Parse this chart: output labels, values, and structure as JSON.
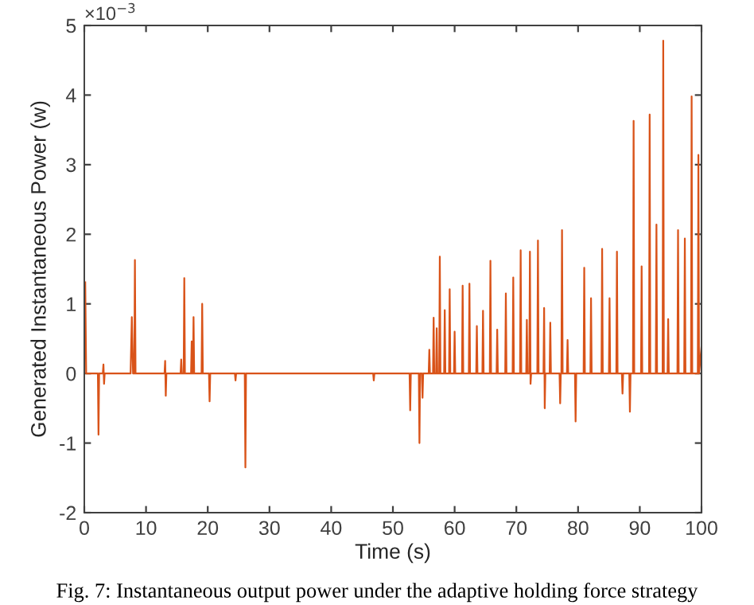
{
  "chart_data": {
    "type": "line",
    "xlabel": "Time (s)",
    "ylabel": "Generated Instantaneous Power (w)",
    "annotations": [
      "×10$^{−3}$",
      "Fig. 7: Instantaneous output power under the adaptive holding force strategy"
    ],
    "xlim": [
      0,
      100
    ],
    "xticks": [
      0,
      10,
      20,
      30,
      40,
      50,
      60,
      70,
      80,
      90,
      100
    ],
    "ylim": [
      -2,
      5
    ],
    "yticks": [
      -2,
      -1,
      0,
      1,
      2,
      3,
      4,
      5
    ],
    "grid": false,
    "legend": false,
    "series": [
      {
        "color": "#d95319",
        "x": [
          0.15,
          0.3,
          2.2,
          2.3,
          2.4,
          3.0,
          3.1,
          3.2,
          3.3,
          7.5,
          7.7,
          7.9,
          8.1,
          8.2,
          8.3,
          13.0,
          13.1,
          13.2,
          13.3,
          15.6,
          15.7,
          15.8,
          16.1,
          16.2,
          16.3,
          17.3,
          17.4,
          17.5,
          17.6,
          17.7,
          17.8,
          19.0,
          19.1,
          19.2,
          20.2,
          20.3,
          20.4,
          24.4,
          24.5,
          24.6,
          26.0,
          26.1,
          26.2,
          46.8,
          46.9,
          47.0,
          52.7,
          52.8,
          52.9,
          54.2,
          54.3,
          54.4,
          54.7,
          54.8,
          54.9,
          55.8,
          55.9,
          56.0,
          56.5,
          56.6,
          56.7,
          57.0,
          57.1,
          57.2,
          57.5,
          57.6,
          57.7,
          58.3,
          58.4,
          58.5,
          59.1,
          59.2,
          59.3,
          59.9,
          60,
          60.1,
          61.2,
          61.3,
          61.4,
          62.3,
          62.4,
          62.5,
          63.5,
          63.6,
          63.7,
          64.5,
          64.6,
          64.7,
          65.7,
          65.8,
          65.9,
          66.8,
          66.9,
          67.0,
          68.2,
          68.3,
          68.4,
          69.4,
          69.5,
          69.6,
          70.6,
          70.7,
          70.8,
          71.6,
          71.7,
          71.8,
          72.1,
          72.2,
          72.3,
          72.4,
          73.4,
          73.5,
          73.6,
          74.4,
          74.5,
          74.6,
          74.7,
          75.4,
          75.5,
          75.6,
          77.0,
          77.1,
          77.2,
          77.3,
          77.4,
          77.5,
          78.2,
          78.3,
          78.4,
          79.5,
          79.6,
          79.7,
          80.9,
          81.0,
          81.1,
          82.0,
          82.1,
          82.2,
          83.8,
          83.9,
          84.0,
          85.0,
          85.1,
          85.2,
          86.2,
          86.3,
          86.4,
          87.1,
          87.2,
          87.3,
          88.3,
          88.4,
          88.5,
          88.9,
          89.0,
          89.1,
          90.2,
          90.3,
          90.4,
          91.5,
          91.6,
          91.7,
          92.6,
          92.7,
          92.8,
          93.7,
          93.8,
          93.9,
          94.5,
          94.6,
          94.7,
          96.1,
          96.2,
          96.3,
          97.2,
          97.3,
          97.4,
          98.3,
          98.4,
          98.5,
          99.4,
          99.5,
          99.6,
          100
        ],
        "values": [
          1.31,
          0,
          0,
          -0.88,
          0,
          0,
          0.13,
          -0.15,
          0,
          0,
          0.81,
          0,
          0,
          1.63,
          0,
          0,
          0.18,
          -0.32,
          0,
          0,
          0.2,
          0,
          0,
          1.37,
          0,
          0,
          0.46,
          0,
          0,
          0.81,
          0,
          0,
          1.0,
          0,
          0,
          -0.4,
          0,
          0,
          -0.1,
          0,
          0,
          -1.35,
          0,
          0,
          -0.1,
          0,
          0,
          -0.53,
          0,
          0,
          -1.0,
          0,
          0,
          -0.35,
          0,
          0,
          0.34,
          0,
          0,
          0.8,
          0,
          0,
          0.65,
          0,
          0,
          1.68,
          0,
          0,
          0.91,
          0,
          0,
          1.21,
          0,
          0,
          0.6,
          0,
          0,
          1.26,
          0,
          0,
          1.29,
          0,
          0,
          0.68,
          0,
          0,
          0.9,
          0,
          0,
          1.62,
          0,
          0,
          0.63,
          0,
          0,
          1.15,
          0,
          0,
          1.38,
          0,
          0,
          1.77,
          0,
          0,
          0.77,
          0,
          0,
          1.75,
          -0.15,
          0,
          0,
          1.91,
          0,
          0,
          0.94,
          -0.5,
          0,
          0,
          0.73,
          0,
          0,
          -0.43,
          0,
          0,
          2.06,
          0,
          0,
          0.48,
          0,
          0,
          -0.69,
          0,
          0,
          1.52,
          0,
          0,
          1.08,
          0,
          0,
          1.79,
          0,
          0,
          1.08,
          0,
          0,
          1.75,
          0,
          0,
          -0.29,
          0,
          0,
          -0.55,
          0,
          0,
          3.63,
          0,
          0,
          1.54,
          0,
          0,
          3.72,
          0,
          0,
          2.14,
          0,
          0,
          4.78,
          0,
          0,
          0.78,
          0,
          0,
          2.06,
          0,
          0,
          1.94,
          0,
          0,
          3.98,
          0,
          0,
          3.14,
          0,
          0.38
        ]
      }
    ]
  }
}
